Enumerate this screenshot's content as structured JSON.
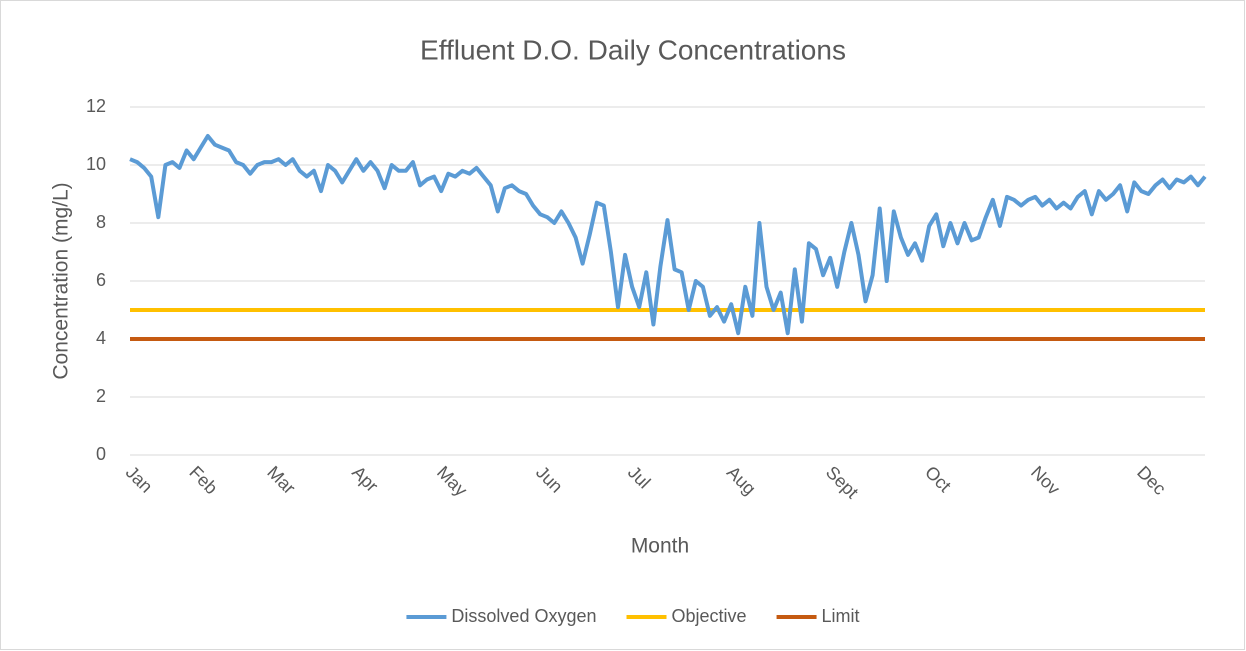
{
  "chart_data": {
    "type": "line",
    "title": "Effluent D.O. Daily Concentrations",
    "x_label": "Month",
    "y_label": "Concentration (mg/L)",
    "ylim": [
      0,
      12
    ],
    "yticks": [
      0,
      2,
      4,
      6,
      8,
      10,
      12
    ],
    "grid": true,
    "legend": "bottom",
    "categories": [
      "Jan",
      null,
      null,
      null,
      null,
      null,
      null,
      null,
      null,
      "Feb",
      null,
      null,
      null,
      null,
      null,
      null,
      null,
      null,
      null,
      null,
      "Mar",
      null,
      null,
      null,
      null,
      null,
      null,
      null,
      null,
      null,
      null,
      null,
      "Apr",
      null,
      null,
      null,
      null,
      null,
      null,
      null,
      null,
      null,
      null,
      null,
      "May",
      null,
      null,
      null,
      null,
      null,
      null,
      null,
      null,
      null,
      null,
      null,
      null,
      null,
      "Jun",
      null,
      null,
      null,
      null,
      null,
      null,
      null,
      null,
      null,
      null,
      null,
      null,
      "Jul",
      null,
      null,
      null,
      null,
      null,
      null,
      null,
      null,
      null,
      null,
      null,
      null,
      null,
      "Aug",
      null,
      null,
      null,
      null,
      null,
      null,
      null,
      null,
      null,
      null,
      null,
      null,
      null,
      "Sept",
      null,
      null,
      null,
      null,
      null,
      null,
      null,
      null,
      null,
      null,
      null,
      null,
      null,
      "Oct",
      null,
      null,
      null,
      null,
      null,
      null,
      null,
      null,
      null,
      null,
      null,
      null,
      null,
      null,
      "Nov",
      null,
      null,
      null,
      null,
      null,
      null,
      null,
      null,
      null,
      null,
      null,
      null,
      null,
      null,
      "Dec",
      null,
      null,
      null,
      null,
      null,
      null,
      null,
      null,
      null
    ],
    "series": [
      {
        "name": "Dissolved Oxygen",
        "color": "#5b9bd5",
        "values": [
          10.2,
          10.1,
          9.9,
          9.6,
          8.2,
          10.0,
          10.1,
          9.9,
          10.5,
          10.2,
          10.6,
          11.0,
          10.7,
          10.6,
          10.5,
          10.1,
          10.0,
          9.7,
          10.0,
          10.1,
          10.1,
          10.2,
          10.0,
          10.2,
          9.8,
          9.6,
          9.8,
          9.1,
          10.0,
          9.8,
          9.4,
          9.8,
          10.2,
          9.8,
          10.1,
          9.8,
          9.2,
          10.0,
          9.8,
          9.8,
          10.1,
          9.3,
          9.5,
          9.6,
          9.1,
          9.7,
          9.6,
          9.8,
          9.7,
          9.9,
          9.6,
          9.3,
          8.4,
          9.2,
          9.3,
          9.1,
          9.0,
          8.6,
          8.3,
          8.2,
          8.0,
          8.4,
          8.0,
          7.5,
          6.6,
          7.6,
          8.7,
          8.6,
          7.0,
          5.1,
          6.9,
          5.8,
          5.1,
          6.3,
          4.5,
          6.5,
          8.1,
          6.4,
          6.3,
          5.0,
          6.0,
          5.8,
          4.8,
          5.1,
          4.6,
          5.2,
          4.2,
          5.8,
          4.8,
          8.0,
          5.8,
          5.0,
          5.6,
          4.2,
          6.4,
          4.6,
          7.3,
          7.1,
          6.2,
          6.8,
          5.8,
          7.0,
          8.0,
          6.9,
          5.3,
          6.2,
          8.5,
          6.0,
          8.4,
          7.5,
          6.9,
          7.3,
          6.7,
          7.9,
          8.3,
          7.2,
          8.0,
          7.3,
          8.0,
          7.4,
          7.5,
          8.2,
          8.8,
          7.9,
          8.9,
          8.8,
          8.6,
          8.8,
          8.9,
          8.6,
          8.8,
          8.5,
          8.7,
          8.5,
          8.9,
          9.1,
          8.3,
          9.1,
          8.8,
          9.0,
          9.3,
          8.4,
          9.4,
          9.1,
          9.0,
          9.3,
          9.5,
          9.2,
          9.5,
          9.4,
          9.6,
          9.3,
          9.6
        ]
      },
      {
        "name": "Objective",
        "color": "#ffc000",
        "values": [
          5,
          5,
          5,
          5,
          5,
          5,
          5,
          5,
          5,
          5,
          5,
          5,
          5,
          5,
          5,
          5,
          5,
          5,
          5,
          5,
          5,
          5,
          5,
          5,
          5,
          5,
          5,
          5,
          5,
          5,
          5,
          5,
          5,
          5,
          5,
          5,
          5,
          5,
          5,
          5,
          5,
          5,
          5,
          5,
          5,
          5,
          5,
          5,
          5,
          5,
          5,
          5,
          5,
          5,
          5,
          5,
          5,
          5,
          5,
          5,
          5,
          5,
          5,
          5,
          5,
          5,
          5,
          5,
          5,
          5,
          5,
          5,
          5,
          5,
          5,
          5,
          5,
          5,
          5,
          5,
          5,
          5,
          5,
          5,
          5,
          5,
          5,
          5,
          5,
          5,
          5,
          5,
          5,
          5,
          5,
          5,
          5,
          5,
          5,
          5,
          5,
          5,
          5,
          5,
          5,
          5,
          5,
          5,
          5,
          5,
          5,
          5,
          5,
          5,
          5,
          5,
          5,
          5,
          5,
          5,
          5,
          5,
          5,
          5,
          5,
          5,
          5,
          5,
          5,
          5,
          5,
          5,
          5,
          5,
          5,
          5,
          5,
          5,
          5,
          5,
          5,
          5,
          5,
          5,
          5,
          5,
          5,
          5,
          5,
          5,
          5,
          5,
          5
        ]
      },
      {
        "name": "Limit",
        "color": "#c55a11",
        "values": [
          4,
          4,
          4,
          4,
          4,
          4,
          4,
          4,
          4,
          4,
          4,
          4,
          4,
          4,
          4,
          4,
          4,
          4,
          4,
          4,
          4,
          4,
          4,
          4,
          4,
          4,
          4,
          4,
          4,
          4,
          4,
          4,
          4,
          4,
          4,
          4,
          4,
          4,
          4,
          4,
          4,
          4,
          4,
          4,
          4,
          4,
          4,
          4,
          4,
          4,
          4,
          4,
          4,
          4,
          4,
          4,
          4,
          4,
          4,
          4,
          4,
          4,
          4,
          4,
          4,
          4,
          4,
          4,
          4,
          4,
          4,
          4,
          4,
          4,
          4,
          4,
          4,
          4,
          4,
          4,
          4,
          4,
          4,
          4,
          4,
          4,
          4,
          4,
          4,
          4,
          4,
          4,
          4,
          4,
          4,
          4,
          4,
          4,
          4,
          4,
          4,
          4,
          4,
          4,
          4,
          4,
          4,
          4,
          4,
          4,
          4,
          4,
          4,
          4,
          4,
          4,
          4,
          4,
          4,
          4,
          4,
          4,
          4,
          4,
          4,
          4,
          4,
          4,
          4,
          4,
          4,
          4,
          4,
          4,
          4,
          4,
          4,
          4,
          4,
          4,
          4,
          4,
          4,
          4,
          4,
          4,
          4,
          4,
          4,
          4,
          4,
          4,
          4
        ]
      }
    ]
  }
}
